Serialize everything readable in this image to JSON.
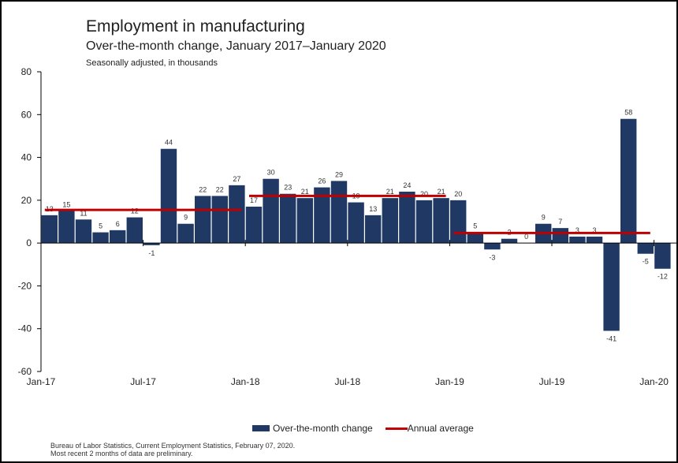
{
  "title": "Employment in manufacturing",
  "subtitle": "Over-the-month change, January 2017–January 2020",
  "note": "Seasonally adjusted, in thousands",
  "source_line1": "Bureau of Labor Statistics, Current Employment Statistics, February 07, 2020.",
  "source_line2": "Most recent 2 months of data are preliminary.",
  "colors": {
    "bar": "#1f3864",
    "average": "#c00000",
    "axis": "#000000"
  },
  "legend": {
    "bar_label": "Over-the-month change",
    "line_label": "Annual average"
  },
  "chart_data": {
    "type": "bar",
    "categories": [
      "Jan-17",
      "Feb-17",
      "Mar-17",
      "Apr-17",
      "May-17",
      "Jun-17",
      "Jul-17",
      "Aug-17",
      "Sep-17",
      "Oct-17",
      "Nov-17",
      "Dec-17",
      "Jan-18",
      "Feb-18",
      "Mar-18",
      "Apr-18",
      "May-18",
      "Jun-18",
      "Jul-18",
      "Aug-18",
      "Sep-18",
      "Oct-18",
      "Nov-18",
      "Dec-18",
      "Jan-19",
      "Feb-19",
      "Mar-19",
      "Apr-19",
      "May-19",
      "Jun-19",
      "Jul-19",
      "Aug-19",
      "Sep-19",
      "Oct-19",
      "Nov-19",
      "Dec-19",
      "Jan-20"
    ],
    "series": [
      {
        "name": "Over-the-month change",
        "values": [
          13,
          15,
          11,
          5,
          6,
          12,
          -1,
          44,
          9,
          22,
          22,
          27,
          17,
          30,
          23,
          21,
          26,
          29,
          19,
          13,
          21,
          24,
          20,
          21,
          20,
          5,
          -3,
          2,
          0,
          9,
          7,
          3,
          3,
          -41,
          58,
          -5,
          -12
        ]
      }
    ],
    "annual_average": [
      {
        "name": "Annual average",
        "start": "Jan-17",
        "end": "Dec-17",
        "value": 15.5
      },
      {
        "name": "Annual average",
        "start": "Jan-18",
        "end": "Dec-18",
        "value": 22
      },
      {
        "name": "Annual average",
        "start": "Jan-19",
        "end": "Dec-19",
        "value": 4.7
      }
    ],
    "ylim": [
      -60,
      80
    ],
    "yticks": [
      -60,
      -40,
      -20,
      0,
      20,
      40,
      60,
      80
    ],
    "xtick_labels": [
      "Jan-17",
      "Jul-17",
      "Jan-18",
      "Jul-18",
      "Jan-19",
      "Jul-19",
      "Jan-20"
    ],
    "legend_position": "bottom",
    "grid": false
  }
}
